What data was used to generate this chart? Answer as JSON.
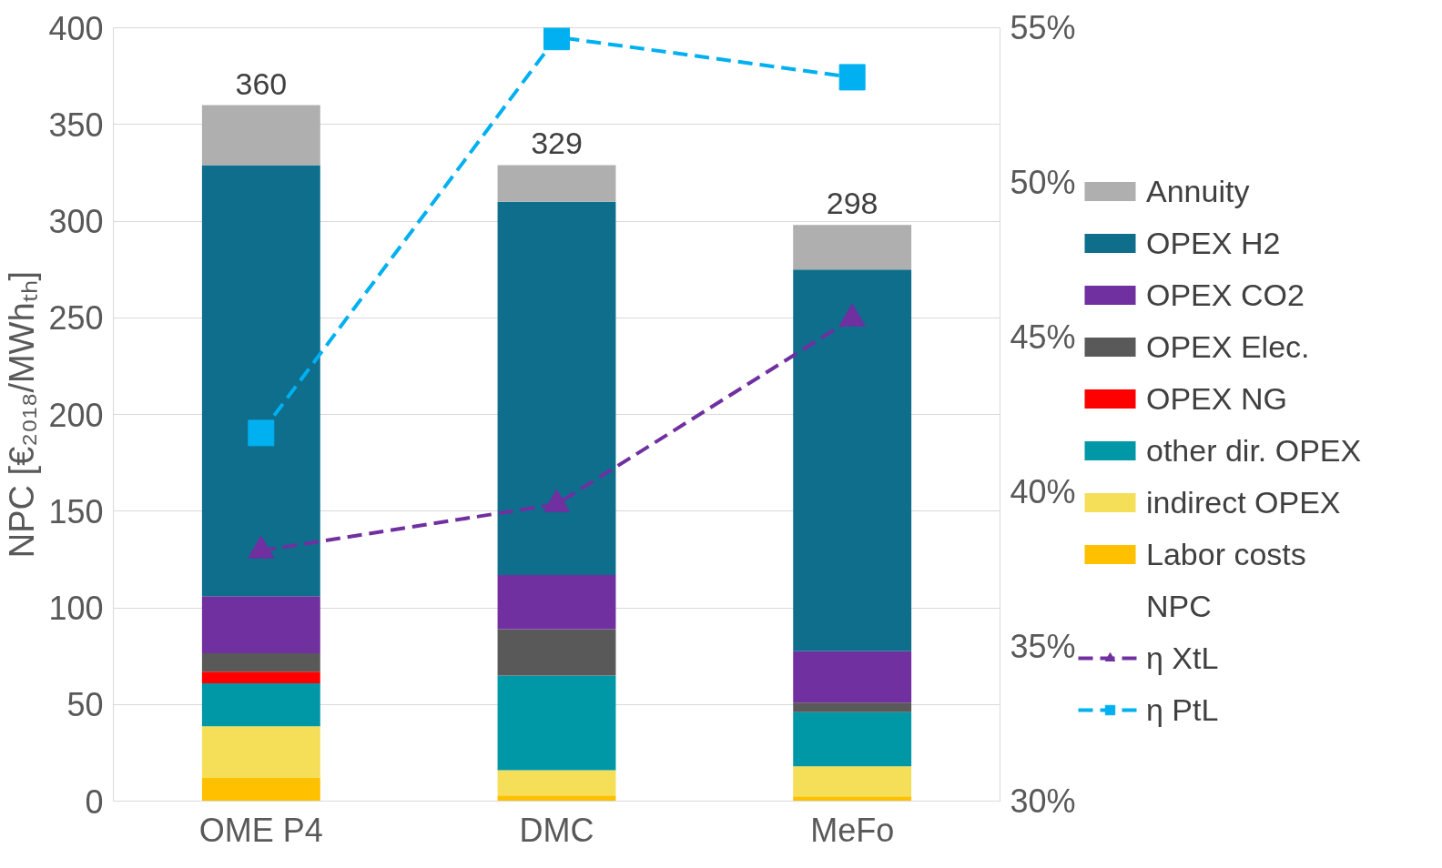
{
  "chart_data": {
    "type": "bar",
    "stacked": true,
    "ylabel": "NPC [€₂₀₁₈/MWhₜₕ]",
    "categories": [
      "OME P4",
      "DMC",
      "MeFo"
    ],
    "ylim": [
      0,
      400
    ],
    "yticks": [
      0,
      50,
      100,
      150,
      200,
      250,
      300,
      350,
      400
    ],
    "y2lim": [
      30,
      55
    ],
    "y2ticks": [
      {
        "value": 30,
        "label": "30%"
      },
      {
        "value": 35,
        "label": "35%"
      },
      {
        "value": 40,
        "label": "40%"
      },
      {
        "value": 45,
        "label": "45%"
      },
      {
        "value": 50,
        "label": "50%"
      },
      {
        "value": 55,
        "label": "55%"
      }
    ],
    "grid": "y",
    "legend": "right",
    "totals": [
      "360",
      "329",
      "298"
    ],
    "annotations": [
      "NPC"
    ],
    "series": [
      {
        "name": "Labor costs",
        "color": "#ffc000",
        "values": [
          12,
          3,
          2.5
        ]
      },
      {
        "name": "indirect OPEX",
        "color": "#f5df59",
        "values": [
          26.7,
          13,
          15.5
        ]
      },
      {
        "name": "other dir. OPEX",
        "color": "#0097a7",
        "values": [
          22.3,
          49,
          28
        ]
      },
      {
        "name": "OPEX NG",
        "color": "#ff0000",
        "values": [
          6,
          0,
          0
        ]
      },
      {
        "name": "OPEX Elec.",
        "color": "#595959",
        "values": [
          9.5,
          24,
          5
        ]
      },
      {
        "name": "OPEX CO2",
        "color": "#7030a0",
        "values": [
          29.5,
          28,
          26.5
        ]
      },
      {
        "name": "OPEX H2",
        "color": "#0e6e8c",
        "values": [
          223,
          193,
          197.5
        ]
      },
      {
        "name": "Annuity",
        "color": "#afafaf",
        "values": [
          31,
          19,
          23
        ]
      },
      {
        "name": "η XtL",
        "type": "line",
        "axis": "y2",
        "color": "#7030a0",
        "marker": "triangle",
        "line_style": "dashed",
        "values": [
          38.1,
          39.6,
          45.6
        ]
      },
      {
        "name": "η PtL",
        "type": "line",
        "axis": "y2",
        "color": "#00b0f0",
        "marker": "square",
        "line_style": "dashed",
        "values": [
          41.9,
          54.7,
          53.4
        ]
      }
    ]
  }
}
